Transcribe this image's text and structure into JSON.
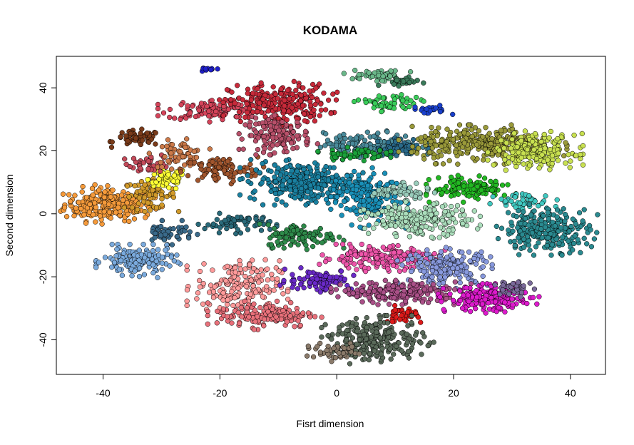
{
  "chart_data": {
    "type": "scatter",
    "title": "KODAMA",
    "xlabel": "Fisrt dimension",
    "ylabel": "Second dimension",
    "xlim": [
      -48,
      46
    ],
    "ylim": [
      -51,
      50
    ],
    "xticks": [
      -40,
      -20,
      0,
      20,
      40
    ],
    "yticks": [
      -40,
      -20,
      0,
      20,
      40
    ],
    "xtick_labels": [
      "-40",
      "-20",
      "0",
      "20",
      "40"
    ],
    "ytick_labels": [
      "-40",
      "-20",
      "0",
      "20",
      "40"
    ],
    "grid": false,
    "legend": "none",
    "clusters": [
      {
        "color": "#f59a3a",
        "cx": -39,
        "cy": 3,
        "sx": 3.8,
        "sy": 2.6,
        "n": 260
      },
      {
        "color": "#d19a2a",
        "cx": -32,
        "cy": 6,
        "sx": 2.2,
        "sy": 2.2,
        "n": 70
      },
      {
        "color": "#ffff33",
        "cx": -29,
        "cy": 11,
        "sx": 1.6,
        "sy": 1.8,
        "n": 70
      },
      {
        "color": "#7a3b1a",
        "cx": -34,
        "cy": 24,
        "sx": 2.0,
        "sy": 1.2,
        "n": 50
      },
      {
        "color": "#c44a5a",
        "cx": -32,
        "cy": 16,
        "sx": 1.8,
        "sy": 1.4,
        "n": 40
      },
      {
        "color": "#cc7a4a",
        "cx": -27,
        "cy": 19,
        "sx": 2.2,
        "sy": 2.0,
        "n": 60
      },
      {
        "color": "#a0552d",
        "cx": -20,
        "cy": 14,
        "sx": 3.2,
        "sy": 2.0,
        "n": 90
      },
      {
        "color": "#d4445a",
        "cx": -21,
        "cy": 33,
        "sx": 4.0,
        "sy": 1.6,
        "n": 110
      },
      {
        "color": "#c82a3a",
        "cx": -10,
        "cy": 35,
        "sx": 4.2,
        "sy": 3.0,
        "n": 240
      },
      {
        "color": "#b8506a",
        "cx": -10,
        "cy": 25,
        "sx": 2.8,
        "sy": 2.6,
        "n": 140
      },
      {
        "color": "#2020cc",
        "cx": -22,
        "cy": 46,
        "sx": 0.8,
        "sy": 0.3,
        "n": 10
      },
      {
        "color": "#2a6a7a",
        "cx": -17,
        "cy": -3,
        "sx": 2.8,
        "sy": 1.4,
        "n": 70
      },
      {
        "color": "#3a6a8a",
        "cx": -29,
        "cy": -6,
        "sx": 2.2,
        "sy": 1.6,
        "n": 50
      },
      {
        "color": "#7aaadd",
        "cx": -34,
        "cy": -15,
        "sx": 3.0,
        "sy": 2.2,
        "n": 150
      },
      {
        "color": "#ff9a9a",
        "cx": -17,
        "cy": -23,
        "sx": 3.6,
        "sy": 4.0,
        "n": 190
      },
      {
        "color": "#e8707a",
        "cx": -12,
        "cy": -32,
        "sx": 4.2,
        "sy": 2.0,
        "n": 150
      },
      {
        "color": "#2e8a4a",
        "cx": -6,
        "cy": -7,
        "sx": 3.0,
        "sy": 1.8,
        "n": 110
      },
      {
        "color": "#1a80a0",
        "cx": -6,
        "cy": 10,
        "sx": 4.4,
        "sy": 3.0,
        "n": 280
      },
      {
        "color": "#1a90b8",
        "cx": 5,
        "cy": 5,
        "sx": 3.0,
        "sy": 4.0,
        "n": 180
      },
      {
        "color": "#4a8a9a",
        "cx": 6,
        "cy": 22,
        "sx": 4.0,
        "sy": 1.8,
        "n": 150
      },
      {
        "color": "#2a6a8a",
        "cx": 11,
        "cy": 21,
        "sx": 2.0,
        "sy": 1.4,
        "n": 50
      },
      {
        "color": "#1aa03a",
        "cx": 3,
        "cy": 19,
        "sx": 2.6,
        "sy": 0.9,
        "n": 60
      },
      {
        "color": "#9a9a3a",
        "cx": 25,
        "cy": 22,
        "sx": 6.0,
        "sy": 2.6,
        "n": 320
      },
      {
        "color": "#c8e050",
        "cx": 34,
        "cy": 20,
        "sx": 3.4,
        "sy": 2.6,
        "n": 200
      },
      {
        "color": "#6ab88a",
        "cx": 7,
        "cy": 44,
        "sx": 2.4,
        "sy": 0.8,
        "n": 50
      },
      {
        "color": "#3a7a5a",
        "cx": 11,
        "cy": 42,
        "sx": 1.6,
        "sy": 0.6,
        "n": 30
      },
      {
        "color": "#3acc5a",
        "cx": 9,
        "cy": 35,
        "sx": 2.6,
        "sy": 1.4,
        "n": 60
      },
      {
        "color": "#1a40cc",
        "cx": 16,
        "cy": 33,
        "sx": 1.6,
        "sy": 0.6,
        "n": 25
      },
      {
        "color": "#22b822",
        "cx": 23,
        "cy": 8,
        "sx": 3.2,
        "sy": 1.8,
        "n": 120
      },
      {
        "color": "#99ccbb",
        "cx": 11,
        "cy": 7,
        "sx": 2.4,
        "sy": 1.2,
        "n": 60
      },
      {
        "color": "#aaddbb",
        "cx": 14,
        "cy": -2,
        "sx": 4.4,
        "sy": 2.4,
        "n": 220
      },
      {
        "color": "#40c8c0",
        "cx": 32,
        "cy": 4,
        "sx": 2.4,
        "sy": 1.2,
        "n": 50
      },
      {
        "color": "#2a8a90",
        "cx": 36,
        "cy": -5,
        "sx": 3.6,
        "sy": 3.4,
        "n": 260
      },
      {
        "color": "#ee55aa",
        "cx": 7,
        "cy": -14,
        "sx": 4.8,
        "sy": 1.8,
        "n": 200
      },
      {
        "color": "#8899dd",
        "cx": 19,
        "cy": -17,
        "sx": 3.6,
        "sy": 2.8,
        "n": 190
      },
      {
        "color": "#6a2ac8",
        "cx": -3,
        "cy": -21,
        "sx": 2.8,
        "sy": 1.6,
        "n": 90
      },
      {
        "color": "#aa5088",
        "cx": 11,
        "cy": -25,
        "sx": 5.0,
        "sy": 1.6,
        "n": 220
      },
      {
        "color": "#dd1acc",
        "cx": 26,
        "cy": -27,
        "sx": 3.6,
        "sy": 2.0,
        "n": 200
      },
      {
        "color": "#7a6a9a",
        "cx": 30,
        "cy": -24,
        "sx": 1.6,
        "sy": 1.4,
        "n": 40
      },
      {
        "color": "#dd1a1a",
        "cx": 11,
        "cy": -32,
        "sx": 1.4,
        "sy": 1.2,
        "n": 40
      },
      {
        "color": "#5a6a5a",
        "cx": 7,
        "cy": -40,
        "sx": 4.0,
        "sy": 3.2,
        "n": 230
      },
      {
        "color": "#8a7a6a",
        "cx": 0,
        "cy": -44,
        "sx": 2.6,
        "sy": 1.2,
        "n": 50
      }
    ]
  }
}
